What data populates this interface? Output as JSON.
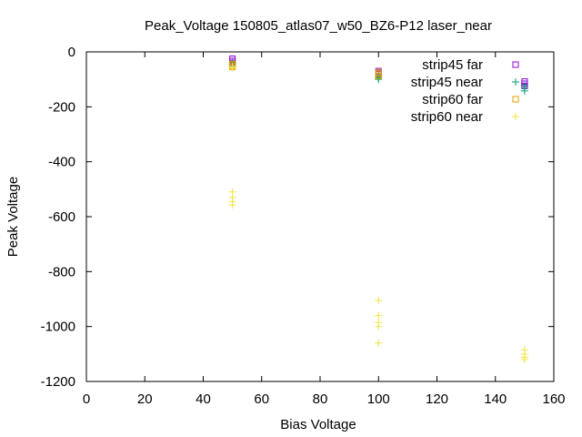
{
  "chart_data": {
    "type": "scatter",
    "title": "Peak_Voltage 150805_atlas07_w50_BZ6-P12 laser_near",
    "xlabel": "Bias Voltage",
    "ylabel": "Peak Voltage",
    "xlim": [
      0,
      160
    ],
    "ylim": [
      -1200,
      0
    ],
    "x_ticks": [
      0,
      20,
      40,
      60,
      80,
      100,
      120,
      140,
      160
    ],
    "y_ticks": [
      0,
      -200,
      -400,
      -600,
      -800,
      -1000,
      -1200
    ],
    "grid": false,
    "legend_position": "top-right",
    "series": [
      {
        "name": "strip45 far",
        "marker": "square",
        "color": "#9400d3",
        "points": [
          {
            "x": 50,
            "y": -25
          },
          {
            "x": 50,
            "y": -33
          },
          {
            "x": 50,
            "y": -40
          },
          {
            "x": 100,
            "y": -70
          },
          {
            "x": 100,
            "y": -76
          },
          {
            "x": 100,
            "y": -82
          },
          {
            "x": 150,
            "y": -108
          },
          {
            "x": 150,
            "y": -116
          },
          {
            "x": 150,
            "y": -124
          }
        ]
      },
      {
        "name": "strip45 near",
        "marker": "plus",
        "color": "#009e73",
        "points": [
          {
            "x": 50,
            "y": -38
          },
          {
            "x": 50,
            "y": -46
          },
          {
            "x": 50,
            "y": -52
          },
          {
            "x": 100,
            "y": -86
          },
          {
            "x": 100,
            "y": -94
          },
          {
            "x": 100,
            "y": -100
          },
          {
            "x": 150,
            "y": -122
          },
          {
            "x": 150,
            "y": -132
          },
          {
            "x": 150,
            "y": -142
          }
        ]
      },
      {
        "name": "strip60 far",
        "marker": "square",
        "color": "#e69f00",
        "points": [
          {
            "x": 50,
            "y": -44
          },
          {
            "x": 50,
            "y": -50
          },
          {
            "x": 50,
            "y": -55
          },
          {
            "x": 100,
            "y": -74
          },
          {
            "x": 100,
            "y": -80
          },
          {
            "x": 100,
            "y": -88
          }
        ]
      },
      {
        "name": "strip60 near",
        "marker": "plus",
        "color": "#f0e442",
        "points": [
          {
            "x": 50,
            "y": -52
          },
          {
            "x": 50,
            "y": -58
          },
          {
            "x": 50,
            "y": -510
          },
          {
            "x": 50,
            "y": -530
          },
          {
            "x": 50,
            "y": -545
          },
          {
            "x": 50,
            "y": -558
          },
          {
            "x": 100,
            "y": -905
          },
          {
            "x": 100,
            "y": -960
          },
          {
            "x": 100,
            "y": -985
          },
          {
            "x": 100,
            "y": -1000
          },
          {
            "x": 100,
            "y": -1060
          },
          {
            "x": 150,
            "y": -1085
          },
          {
            "x": 150,
            "y": -1100
          },
          {
            "x": 150,
            "y": -1112
          },
          {
            "x": 150,
            "y": -1120
          }
        ]
      }
    ]
  }
}
